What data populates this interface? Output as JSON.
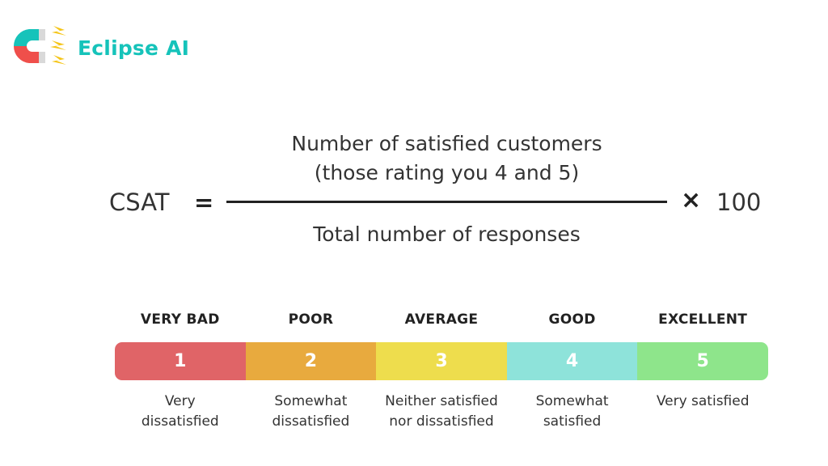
{
  "brand": {
    "name": "Eclipse AI",
    "colors": {
      "teal": "#16c3ba",
      "red": "#ef4f4b",
      "yellow": "#f5c518"
    },
    "icon": "magnet-lightning-icon"
  },
  "formula": {
    "label": "CSAT",
    "equals": "=",
    "numerator_lines": [
      "Number of satisfied customers",
      "(those rating you 4 and 5)"
    ],
    "denominator": "Total number of responses",
    "times": "×",
    "multiplier": "100"
  },
  "scale": {
    "levels": [
      {
        "header": "VERY BAD",
        "value": "1",
        "desc_lines": [
          "Very",
          "dissatisfied"
        ],
        "color": "#e06467"
      },
      {
        "header": "POOR",
        "value": "2",
        "desc_lines": [
          "Somewhat",
          "dissatisfied"
        ],
        "color": "#e8aa3e"
      },
      {
        "header": "AVERAGE",
        "value": "3",
        "desc_lines": [
          "Neither satisfied",
          "nor dissatisfied"
        ],
        "color": "#eedd4d"
      },
      {
        "header": "GOOD",
        "value": "4",
        "desc_lines": [
          "Somewhat",
          "satisfied"
        ],
        "color": "#8ee3da"
      },
      {
        "header": "EXCELLENT",
        "value": "5",
        "desc_lines": [
          "Very satisfied"
        ],
        "color": "#8ee58b"
      }
    ]
  }
}
